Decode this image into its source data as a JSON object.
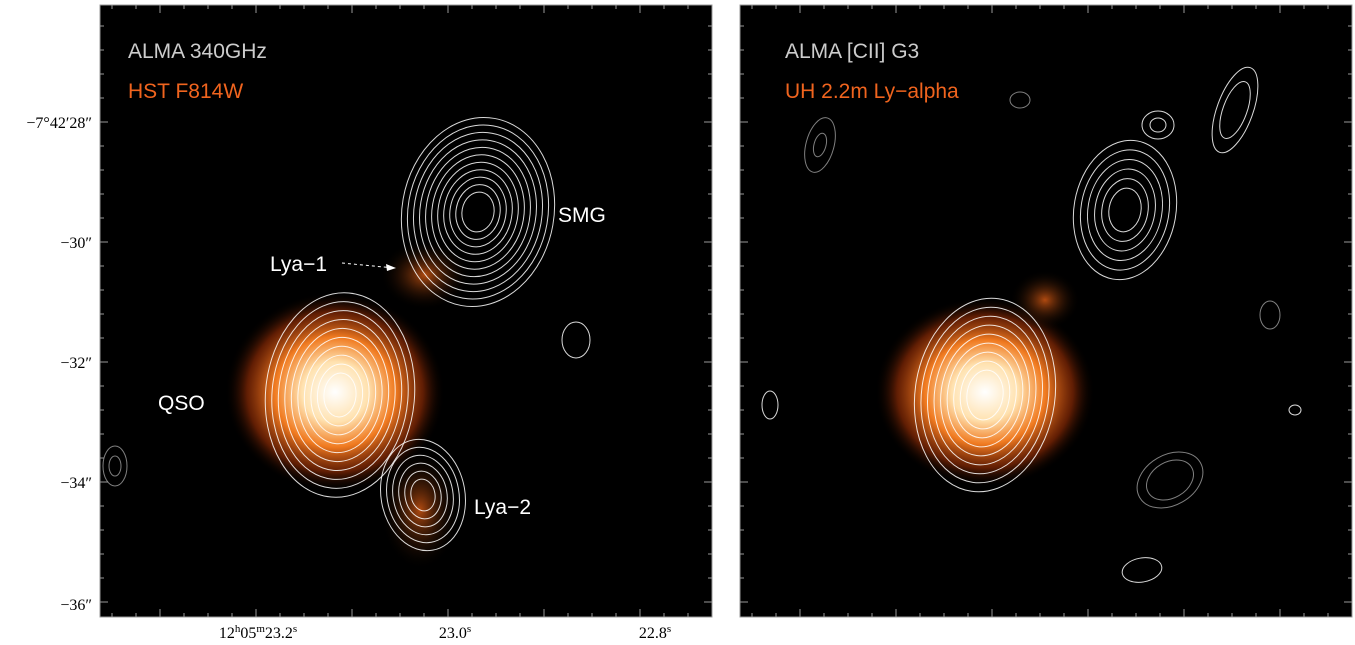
{
  "panels": [
    {
      "legend": [
        "ALMA 340GHz",
        "HST F814W"
      ],
      "labels": [
        "SMG",
        "Lya−1",
        "QSO",
        "Lya−2"
      ]
    },
    {
      "legend": [
        "ALMA [CII] G3",
        "UH 2.2m Ly−alpha"
      ]
    }
  ],
  "y_axis": {
    "tick_labels": [
      "−7°42′28″",
      "−30″",
      "−32″",
      "−34″",
      "−36″"
    ]
  },
  "x_axis": {
    "tick_labels": [
      [
        "12",
        "h",
        "05",
        "m",
        "23.2",
        "s"
      ],
      [
        "23.0",
        "s"
      ],
      [
        "22.8",
        "s"
      ]
    ]
  }
}
